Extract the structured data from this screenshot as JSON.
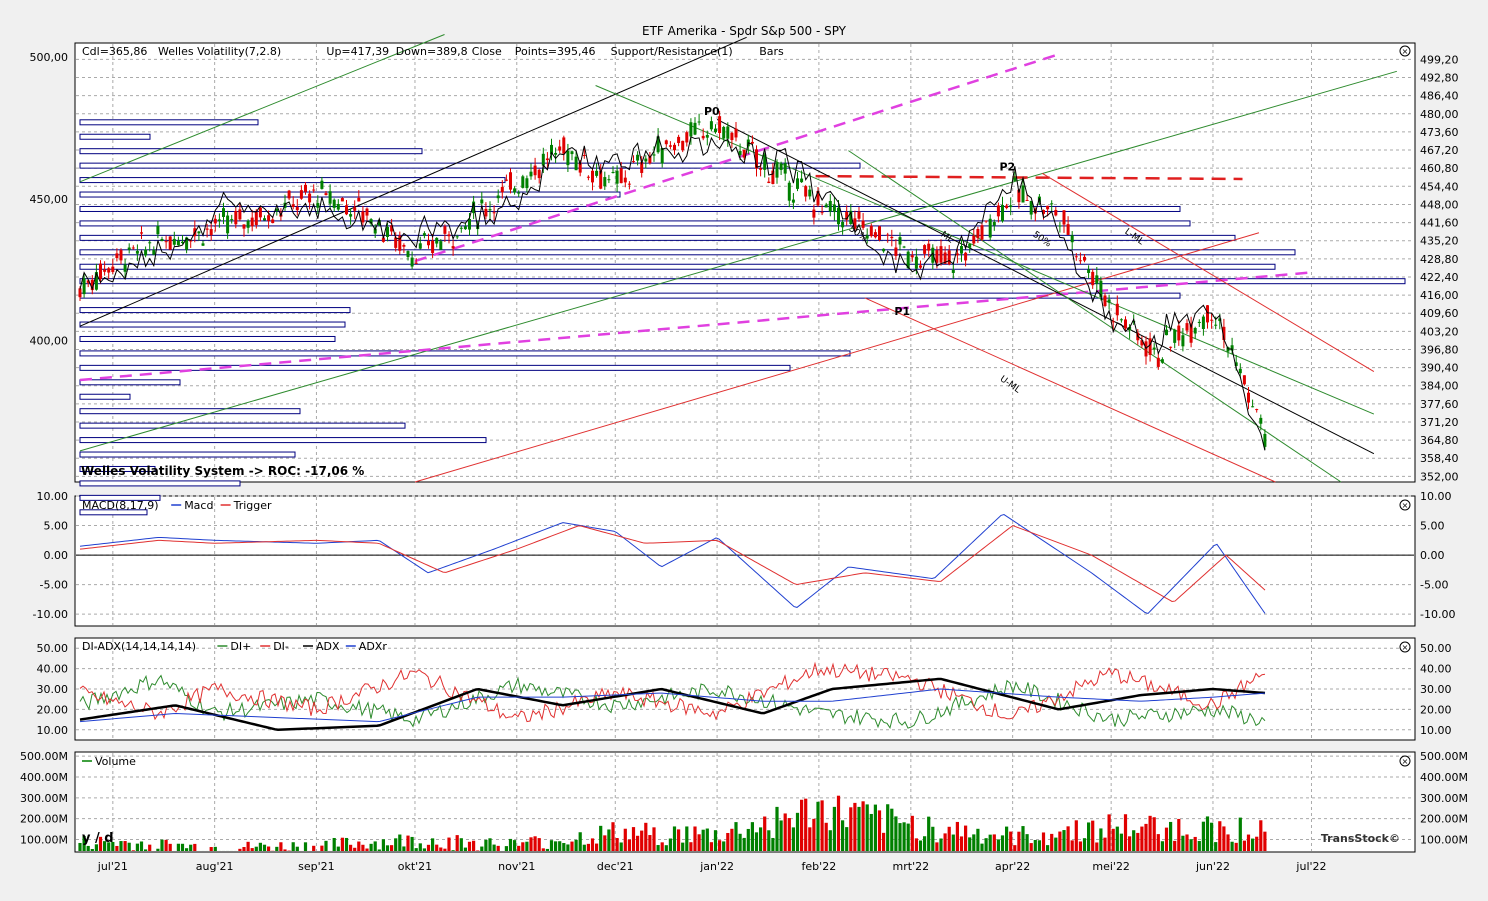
{
  "title": "ETF Amerika - Spdr S&p 500 - SPY",
  "brand": "TransStock©",
  "timeframe_label": "y / d",
  "months": [
    "jul'21",
    "aug'21",
    "sep'21",
    "okt'21",
    "nov'21",
    "dec'21",
    "jan'22",
    "feb'22",
    "mrt'22",
    "apr'22",
    "mei'22",
    "jun'22",
    "jul'22"
  ],
  "colors": {
    "up_candle": "#008000",
    "down_candle": "#e00000",
    "green_line": "#2e8b2e",
    "red_line": "#e03030",
    "magenta_line": "#e040e0",
    "blue_line": "#2040d0",
    "black_line": "#000000",
    "bar_outline": "#000080"
  },
  "chart_data": [
    {
      "type": "line",
      "panel": "price",
      "legend": [
        "Cdl=365,86",
        "Welles Volatility(7,2.8)",
        "Up=417,39",
        "Down=389,8",
        "Close",
        "Points=395,46",
        "Support/Resistance(1)",
        "Bars"
      ],
      "left_ticks": [
        "500,00",
        "450,00",
        "400,00"
      ],
      "right_ticks": [
        "499,20",
        "492,80",
        "486,40",
        "480,00",
        "473,60",
        "467,20",
        "460,80",
        "454,40",
        "448,00",
        "441,60",
        "435,20",
        "428,80",
        "422,40",
        "416,00",
        "409,60",
        "403,20",
        "396,80",
        "390,40",
        "384,00",
        "377,60",
        "371,20",
        "364,80",
        "358,40",
        "352,00"
      ],
      "ylim": [
        350,
        505
      ],
      "annotation": "Welles Volatility System -> ROC: -17,06 %",
      "pivot_labels": [
        "P0",
        "P1",
        "P2"
      ],
      "line_labels": [
        "50%",
        "ML",
        "50%",
        "L-ML",
        "U-ML"
      ],
      "series": [
        {
          "name": "Close",
          "x": [
            "2021-06-21",
            "2021-07-01",
            "2021-07-15",
            "2021-08-01",
            "2021-08-15",
            "2021-09-01",
            "2021-09-15",
            "2021-10-01",
            "2021-10-15",
            "2021-11-01",
            "2021-11-15",
            "2021-12-01",
            "2021-12-15",
            "2022-01-01",
            "2022-01-15",
            "2022-02-01",
            "2022-02-15",
            "2022-03-01",
            "2022-03-15",
            "2022-04-01",
            "2022-04-15",
            "2022-05-01",
            "2022-05-15",
            "2022-06-01",
            "2022-06-17"
          ],
          "y": [
            418,
            428,
            435,
            440,
            444,
            452,
            446,
            430,
            440,
            456,
            468,
            455,
            468,
            476,
            462,
            448,
            440,
            430,
            428,
            452,
            445,
            412,
            395,
            412,
            366
          ]
        }
      ]
    },
    {
      "type": "line",
      "panel": "macd",
      "legend": [
        "MACD(8,17,9)",
        "Macd",
        "Trigger"
      ],
      "ticks": [
        "10.00",
        "5.00",
        "0.00",
        "-5.00",
        "-10.00"
      ],
      "ylim": [
        -12,
        10
      ],
      "series": [
        {
          "name": "Macd",
          "x": [
            "2021-06-21",
            "2021-07-15",
            "2021-08-01",
            "2021-09-01",
            "2021-09-20",
            "2021-10-05",
            "2021-10-25",
            "2021-11-15",
            "2021-12-01",
            "2021-12-15",
            "2022-01-01",
            "2022-01-25",
            "2022-02-10",
            "2022-03-08",
            "2022-03-29",
            "2022-04-25",
            "2022-05-12",
            "2022-06-02",
            "2022-06-17"
          ],
          "y": [
            1.5,
            3,
            2.5,
            2,
            2.5,
            -3,
            1,
            5.5,
            4,
            -2,
            3,
            -9,
            -2,
            -4,
            7,
            -3,
            -10,
            2,
            -10
          ]
        },
        {
          "name": "Trigger",
          "x": [
            "2021-06-21",
            "2021-07-15",
            "2021-08-01",
            "2021-09-01",
            "2021-09-20",
            "2021-10-10",
            "2021-11-01",
            "2021-11-20",
            "2021-12-10",
            "2022-01-01",
            "2022-01-25",
            "2022-02-15",
            "2022-03-10",
            "2022-04-01",
            "2022-04-25",
            "2022-05-20",
            "2022-06-05",
            "2022-06-17"
          ],
          "y": [
            1,
            2.5,
            2,
            2.5,
            2,
            -3,
            1,
            5,
            2,
            2.5,
            -5,
            -3,
            -4.5,
            5,
            0,
            -8,
            0,
            -6
          ]
        }
      ]
    },
    {
      "type": "line",
      "panel": "dmi",
      "legend": [
        "DI-ADX(14,14,14,14)",
        "DI+",
        "DI-",
        "ADX",
        "ADXr"
      ],
      "ticks": [
        "50.00",
        "40.00",
        "30.00",
        "20.00",
        "10.00"
      ],
      "ylim": [
        5,
        55
      ],
      "series": [
        {
          "name": "DI+",
          "x": [
            "2021-06-21",
            "2021-07-15",
            "2021-08-01",
            "2021-09-01",
            "2021-10-01",
            "2021-11-01",
            "2021-12-01",
            "2022-01-01",
            "2022-02-01",
            "2022-03-01",
            "2022-04-01",
            "2022-05-01",
            "2022-06-01",
            "2022-06-17"
          ],
          "y": [
            22,
            35,
            18,
            25,
            15,
            32,
            22,
            30,
            18,
            14,
            32,
            15,
            20,
            14
          ]
        },
        {
          "name": "DI-",
          "x": [
            "2021-06-21",
            "2021-07-15",
            "2021-08-01",
            "2021-09-01",
            "2021-10-01",
            "2021-11-01",
            "2021-12-01",
            "2022-01-01",
            "2022-02-01",
            "2022-03-01",
            "2022-04-01",
            "2022-05-01",
            "2022-06-01",
            "2022-06-17"
          ],
          "y": [
            28,
            18,
            30,
            20,
            38,
            15,
            28,
            18,
            40,
            35,
            16,
            38,
            22,
            38
          ]
        },
        {
          "name": "ADX",
          "x": [
            "2021-06-21",
            "2021-07-20",
            "2021-08-20",
            "2021-09-20",
            "2021-10-20",
            "2021-11-15",
            "2021-12-15",
            "2022-01-15",
            "2022-02-05",
            "2022-03-10",
            "2022-04-15",
            "2022-05-10",
            "2022-06-01",
            "2022-06-17"
          ],
          "y": [
            15,
            22,
            10,
            12,
            30,
            22,
            30,
            18,
            30,
            35,
            20,
            27,
            30,
            28
          ]
        },
        {
          "name": "ADXr",
          "x": [
            "2021-06-21",
            "2021-07-20",
            "2021-08-20",
            "2021-09-20",
            "2021-10-20",
            "2021-11-15",
            "2021-12-15",
            "2022-01-15",
            "2022-02-05",
            "2022-03-10",
            "2022-04-15",
            "2022-05-10",
            "2022-06-01",
            "2022-06-17"
          ],
          "y": [
            14,
            18,
            16,
            14,
            26,
            26,
            28,
            24,
            24,
            30,
            26,
            24,
            26,
            28
          ]
        }
      ]
    },
    {
      "type": "bar",
      "panel": "volume",
      "legend": [
        "Volume"
      ],
      "ticks": [
        "500.00M",
        "400.00M",
        "300.00M",
        "200.00M",
        "100.00M"
      ],
      "ylim": [
        40,
        520
      ],
      "x": [
        "2021-06",
        "2021-07",
        "2021-08",
        "2021-09",
        "2021-10",
        "2021-11",
        "2021-12",
        "2022-01",
        "2022-02",
        "2022-03",
        "2022-04",
        "2022-05",
        "2022-06"
      ],
      "y": [
        80,
        85,
        60,
        70,
        95,
        75,
        130,
        120,
        240,
        170,
        110,
        160,
        150
      ]
    }
  ]
}
